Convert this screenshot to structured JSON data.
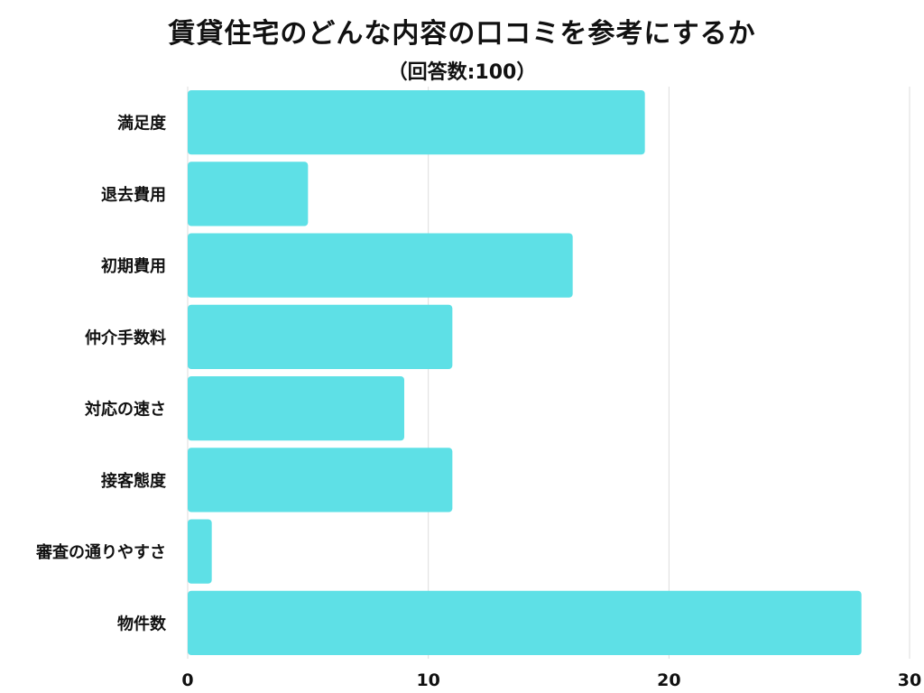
{
  "chart_data": {
    "type": "bar",
    "orientation": "horizontal",
    "title": "賃貸住宅のどんな内容の口コミを参考にするか",
    "subtitle": "（回答数:100）",
    "categories": [
      "満足度",
      "退去費用",
      "初期費用",
      "仲介手数料",
      "対応の速さ",
      "接客態度",
      "審査の通りやすさ",
      "物件数"
    ],
    "values": [
      19,
      5,
      16,
      11,
      9,
      11,
      1,
      28
    ],
    "xlim": [
      0,
      30
    ],
    "xticks": [
      "0",
      "10",
      "20",
      "30"
    ],
    "grid": true,
    "bar_color": "#5ee0e6",
    "grid_color": "#dddddd"
  }
}
